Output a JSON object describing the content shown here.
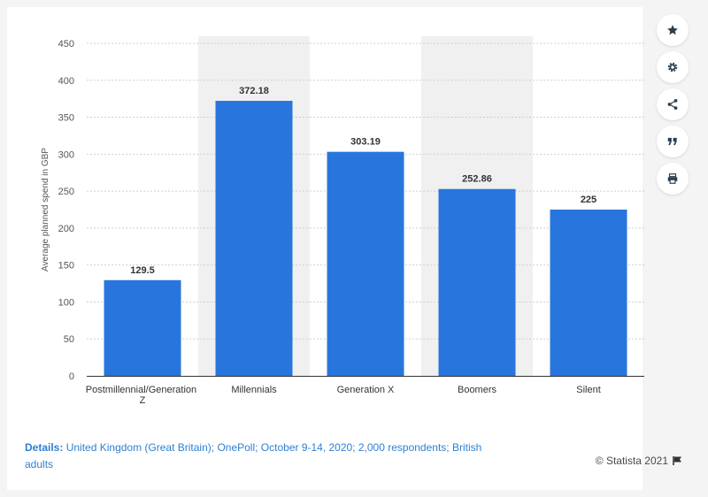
{
  "colors": {
    "bar": "#2876dd",
    "band": "#f0f0f0",
    "accent": "#2f7fd1"
  },
  "toolbar": {
    "items": [
      {
        "icon": "star-icon"
      },
      {
        "icon": "gear-icon"
      },
      {
        "icon": "share-icon"
      },
      {
        "icon": "quote-icon"
      },
      {
        "icon": "print-icon"
      }
    ]
  },
  "chart_data": {
    "type": "bar",
    "categories": [
      "Postmillennial/Generation Z",
      "Millennials",
      "Generation X",
      "Boomers",
      "Silent"
    ],
    "values": [
      129.5,
      372.18,
      303.19,
      252.86,
      225
    ],
    "value_labels": [
      "129.5",
      "372.18",
      "303.19",
      "252.86",
      "225"
    ],
    "ylabel": "Average planned spend in GBP",
    "ylim": [
      0,
      450
    ],
    "yticks": [
      0,
      50,
      100,
      150,
      200,
      250,
      300,
      350,
      400,
      450
    ],
    "grid": true
  },
  "footer": {
    "details_label": "Details:",
    "details_text": "United Kingdom (Great Britain); OnePoll; October 9-14, 2020; 2,000 respondents; British adults",
    "credit": "© Statista 2021"
  }
}
